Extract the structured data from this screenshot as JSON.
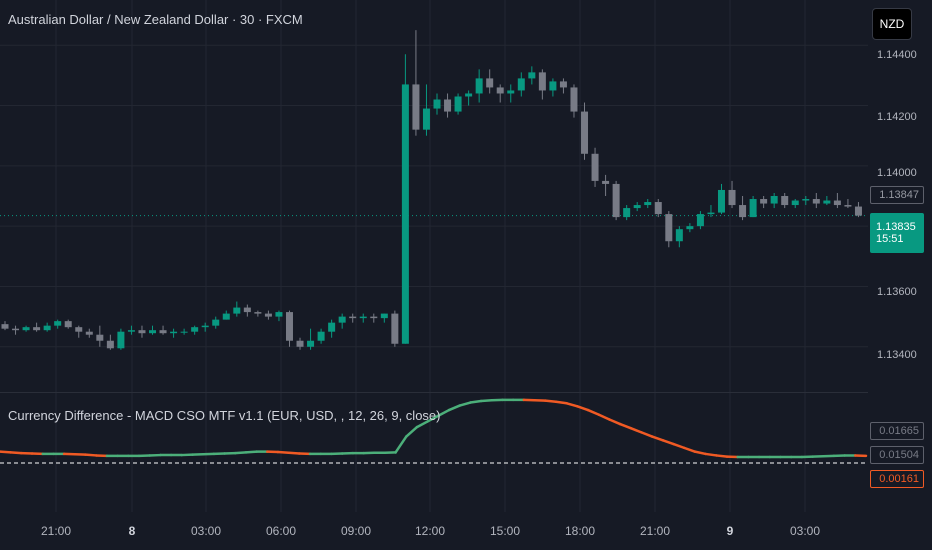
{
  "symbol_title": "Australian Dollar / New Zealand Dollar · 30 · FXCM",
  "currency_button": "NZD",
  "colors": {
    "bg": "#161A25",
    "grid": "#232732",
    "up": "#089981",
    "down": "#787B86",
    "macd_up": "#4CAF7A",
    "macd_down": "#F05A24",
    "zero_line": "#FFFFFF"
  },
  "price_axis": {
    "labels": [
      "1.14400",
      "1.14200",
      "1.14000",
      "1.13600",
      "1.13400"
    ],
    "values": [
      1.144,
      1.142,
      1.14,
      1.136,
      1.134
    ],
    "prev_close": "1.13847",
    "last_price": "1.13835",
    "countdown": "15:51"
  },
  "indicator": {
    "title": "Currency Difference - MACD CSO MTF v1.1 (EUR, USD, , 12, 26, 9, close)",
    "labels": [
      "0.01665",
      "0.01504",
      "0.00161"
    ]
  },
  "time_axis": [
    {
      "label": "21:00",
      "bold": false
    },
    {
      "label": "8",
      "bold": true
    },
    {
      "label": "03:00",
      "bold": false
    },
    {
      "label": "06:00",
      "bold": false
    },
    {
      "label": "09:00",
      "bold": false
    },
    {
      "label": "12:00",
      "bold": false
    },
    {
      "label": "15:00",
      "bold": false
    },
    {
      "label": "18:00",
      "bold": false
    },
    {
      "label": "21:00",
      "bold": false
    },
    {
      "label": "9",
      "bold": true
    },
    {
      "label": "03:00",
      "bold": false
    }
  ],
  "chart_data": {
    "type": "candlestick",
    "y_range": [
      1.1325,
      1.1455
    ],
    "candles_ohlc": [
      [
        1.13475,
        1.13485,
        1.13455,
        1.1346
      ],
      [
        1.1346,
        1.1347,
        1.1344,
        1.13455
      ],
      [
        1.13455,
        1.1347,
        1.1345,
        1.13465
      ],
      [
        1.13465,
        1.1348,
        1.1345,
        1.13455
      ],
      [
        1.13455,
        1.1348,
        1.1345,
        1.1347
      ],
      [
        1.1347,
        1.1349,
        1.1346,
        1.13485
      ],
      [
        1.13485,
        1.1349,
        1.1346,
        1.13465
      ],
      [
        1.13465,
        1.1347,
        1.1343,
        1.1345
      ],
      [
        1.1345,
        1.1346,
        1.1343,
        1.1344
      ],
      [
        1.1344,
        1.1347,
        1.134,
        1.1342
      ],
      [
        1.1342,
        1.1344,
        1.1339,
        1.13395
      ],
      [
        1.13395,
        1.1346,
        1.1339,
        1.1345
      ],
      [
        1.1345,
        1.1347,
        1.1344,
        1.13455
      ],
      [
        1.13455,
        1.1347,
        1.1343,
        1.13445
      ],
      [
        1.13445,
        1.1347,
        1.1344,
        1.13455
      ],
      [
        1.13455,
        1.1347,
        1.1344,
        1.13445
      ],
      [
        1.13445,
        1.1346,
        1.1343,
        1.1345
      ],
      [
        1.1345,
        1.1346,
        1.1344,
        1.1345
      ],
      [
        1.1345,
        1.1347,
        1.1344,
        1.13465
      ],
      [
        1.13465,
        1.1348,
        1.1345,
        1.1347
      ],
      [
        1.1347,
        1.135,
        1.1346,
        1.1349
      ],
      [
        1.1349,
        1.1352,
        1.1349,
        1.1351
      ],
      [
        1.1351,
        1.1355,
        1.135,
        1.1353
      ],
      [
        1.1353,
        1.1354,
        1.135,
        1.13515
      ],
      [
        1.13515,
        1.1352,
        1.135,
        1.1351
      ],
      [
        1.1351,
        1.1352,
        1.1349,
        1.135
      ],
      [
        1.135,
        1.1352,
        1.13485,
        1.13515
      ],
      [
        1.13515,
        1.1352,
        1.134,
        1.1342
      ],
      [
        1.1342,
        1.1343,
        1.1339,
        1.134
      ],
      [
        1.134,
        1.1346,
        1.1339,
        1.1342
      ],
      [
        1.1342,
        1.1346,
        1.1341,
        1.1345
      ],
      [
        1.1345,
        1.1349,
        1.1343,
        1.1348
      ],
      [
        1.1348,
        1.1351,
        1.1346,
        1.135
      ],
      [
        1.135,
        1.1351,
        1.1348,
        1.13495
      ],
      [
        1.13495,
        1.1351,
        1.1348,
        1.135
      ],
      [
        1.135,
        1.1351,
        1.1348,
        1.13495
      ],
      [
        1.13495,
        1.1351,
        1.1348,
        1.1351
      ],
      [
        1.1351,
        1.1352,
        1.134,
        1.1341
      ],
      [
        1.1341,
        1.1437,
        1.1341,
        1.1427
      ],
      [
        1.1427,
        1.1445,
        1.141,
        1.1412
      ],
      [
        1.1412,
        1.1427,
        1.141,
        1.1419
      ],
      [
        1.1419,
        1.1424,
        1.1417,
        1.1422
      ],
      [
        1.1422,
        1.1424,
        1.1416,
        1.1418
      ],
      [
        1.1418,
        1.1424,
        1.1417,
        1.1423
      ],
      [
        1.1423,
        1.1425,
        1.142,
        1.1424
      ],
      [
        1.1424,
        1.1432,
        1.1421,
        1.1429
      ],
      [
        1.1429,
        1.1432,
        1.1424,
        1.1426
      ],
      [
        1.1426,
        1.1427,
        1.1421,
        1.1424
      ],
      [
        1.1424,
        1.1427,
        1.1421,
        1.1425
      ],
      [
        1.1425,
        1.1431,
        1.1423,
        1.1429
      ],
      [
        1.1429,
        1.1433,
        1.1427,
        1.1431
      ],
      [
        1.1431,
        1.1432,
        1.1422,
        1.1425
      ],
      [
        1.1425,
        1.1429,
        1.1423,
        1.1428
      ],
      [
        1.1428,
        1.1429,
        1.1424,
        1.1426
      ],
      [
        1.1426,
        1.1427,
        1.1416,
        1.1418
      ],
      [
        1.1418,
        1.1421,
        1.1402,
        1.1404
      ],
      [
        1.1404,
        1.1406,
        1.1393,
        1.1395
      ],
      [
        1.1395,
        1.1397,
        1.139,
        1.1394
      ],
      [
        1.1394,
        1.1395,
        1.1382,
        1.1383
      ],
      [
        1.1383,
        1.1387,
        1.1382,
        1.1386
      ],
      [
        1.1386,
        1.1388,
        1.1385,
        1.1387
      ],
      [
        1.1387,
        1.1389,
        1.1386,
        1.1388
      ],
      [
        1.1388,
        1.1389,
        1.1383,
        1.1384
      ],
      [
        1.1384,
        1.1385,
        1.1373,
        1.1375
      ],
      [
        1.1375,
        1.138,
        1.1373,
        1.1379
      ],
      [
        1.1379,
        1.1381,
        1.1378,
        1.138
      ],
      [
        1.138,
        1.1385,
        1.1379,
        1.1384
      ],
      [
        1.1384,
        1.1387,
        1.1383,
        1.13845
      ],
      [
        1.13845,
        1.1394,
        1.1384,
        1.1392
      ],
      [
        1.1392,
        1.1395,
        1.1386,
        1.1387
      ],
      [
        1.1387,
        1.139,
        1.1382,
        1.1383
      ],
      [
        1.1383,
        1.139,
        1.1383,
        1.1389
      ],
      [
        1.1389,
        1.139,
        1.1386,
        1.13875
      ],
      [
        1.13875,
        1.1391,
        1.1386,
        1.139
      ],
      [
        1.139,
        1.1391,
        1.1386,
        1.1387
      ],
      [
        1.1387,
        1.1389,
        1.1386,
        1.13885
      ],
      [
        1.13885,
        1.139,
        1.1387,
        1.1389
      ],
      [
        1.1389,
        1.1391,
        1.1386,
        1.13875
      ],
      [
        1.13875,
        1.139,
        1.1387,
        1.13885
      ],
      [
        1.13885,
        1.1391,
        1.1386,
        1.1387
      ],
      [
        1.1387,
        1.1389,
        1.1386,
        1.13865
      ],
      [
        1.13865,
        1.1388,
        1.1383,
        1.13835
      ]
    ],
    "indicator_line": [
      0.003,
      0.0028,
      0.0026,
      0.0025,
      0.0024,
      0.0024,
      0.0024,
      0.0023,
      0.0022,
      0.002,
      0.0019,
      0.0019,
      0.0019,
      0.0019,
      0.002,
      0.0021,
      0.0021,
      0.0021,
      0.0022,
      0.0023,
      0.0024,
      0.0025,
      0.0026,
      0.0028,
      0.003,
      0.003,
      0.0029,
      0.0027,
      0.0025,
      0.0024,
      0.0024,
      0.0024,
      0.0025,
      0.0026,
      0.0026,
      0.0027,
      0.0027,
      0.0028,
      0.007,
      0.0095,
      0.011,
      0.0125,
      0.014,
      0.0152,
      0.016,
      0.0164,
      0.0166,
      0.0167,
      0.0167,
      0.0167,
      0.0166,
      0.0165,
      0.0162,
      0.0158,
      0.015,
      0.014,
      0.0128,
      0.0115,
      0.0103,
      0.0092,
      0.0081,
      0.007,
      0.006,
      0.005,
      0.004,
      0.003,
      0.0024,
      0.002,
      0.0017,
      0.0016,
      0.0016,
      0.0016,
      0.0016,
      0.0016,
      0.0016,
      0.0016,
      0.0017,
      0.0018,
      0.0019,
      0.002,
      0.002,
      0.0019
    ]
  }
}
